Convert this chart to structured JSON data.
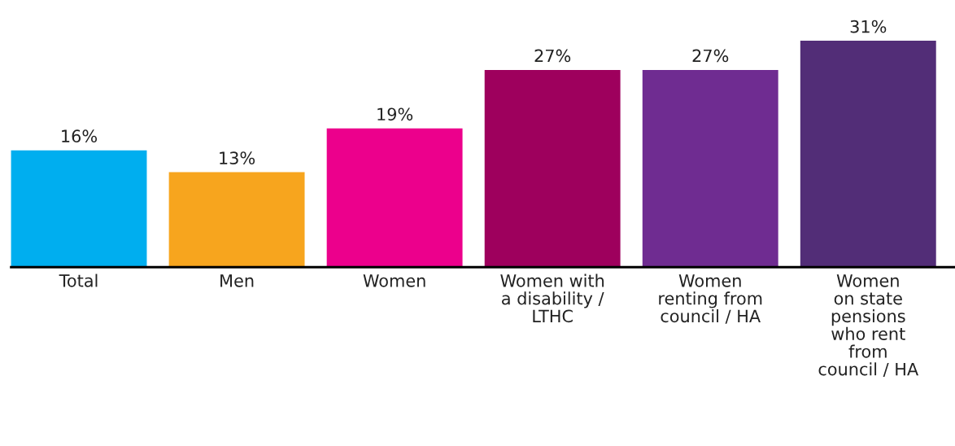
{
  "chart_data": {
    "type": "bar",
    "categories": [
      "Total",
      "Men",
      "Women",
      "Women with\na disability /\nLTHC",
      "Women\nrenting from\ncouncil / HA",
      "Women\non state\npensions\nwho rent\nfrom\ncouncil / HA"
    ],
    "values": [
      16,
      13,
      19,
      27,
      27,
      31
    ],
    "value_labels": [
      "16%",
      "13%",
      "19%",
      "27%",
      "27%",
      "31%"
    ],
    "colors": [
      "#00aeef",
      "#f7a51e",
      "#ec008c",
      "#9e005d",
      "#6f2c91",
      "#522d77"
    ],
    "grid": false,
    "legend": false
  }
}
